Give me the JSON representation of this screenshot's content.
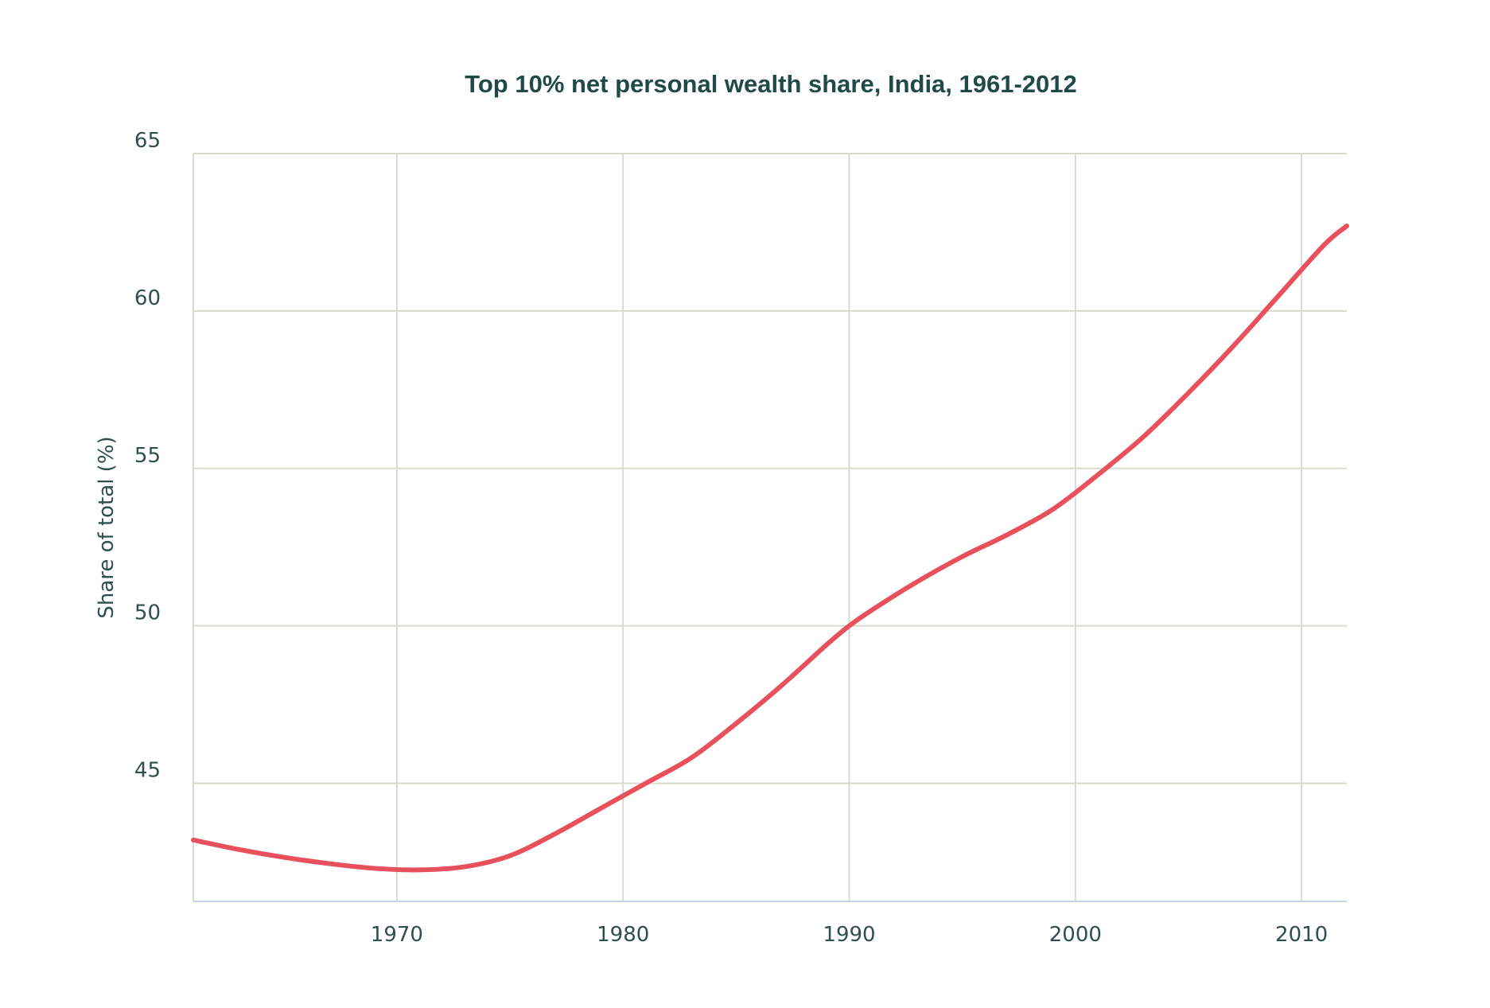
{
  "colors": {
    "series": "#e8505b",
    "title": "#1f4a45",
    "text": "#2f4f4f",
    "grid": "#d9d9d0",
    "axis": "#c8d2e2"
  },
  "chart_data": {
    "type": "line",
    "title": "Top 10% net personal wealth share, India, 1961-2012",
    "xlabel": "",
    "ylabel": "Share of total (%)",
    "xlim": [
      1961,
      2012
    ],
    "ylim": [
      41.25,
      65
    ],
    "x_ticks": [
      1970,
      1980,
      1990,
      2000,
      2010
    ],
    "x_tick_labels": [
      "1970",
      "1980",
      "1990",
      "2000",
      "2010"
    ],
    "y_ticks": [
      45,
      50,
      55,
      60,
      65
    ],
    "y_tick_labels": [
      "45",
      "50",
      "55",
      "60",
      "65"
    ],
    "grid": true,
    "legend": "none",
    "series": [
      {
        "x": [
          1961,
          1963,
          1965,
          1967,
          1969,
          1971,
          1973,
          1975,
          1977,
          1979,
          1981,
          1983,
          1985,
          1987,
          1989,
          1990,
          1991,
          1993,
          1995,
          1997,
          1999,
          2001,
          2003,
          2005,
          2007,
          2009,
          2011,
          2012
        ],
        "values": [
          43.2,
          42.9,
          42.65,
          42.45,
          42.3,
          42.25,
          42.35,
          42.7,
          43.4,
          44.2,
          45.0,
          45.8,
          46.9,
          48.1,
          49.4,
          50.0,
          50.5,
          51.4,
          52.2,
          52.9,
          53.7,
          54.8,
          56.0,
          57.4,
          58.9,
          60.5,
          62.1,
          62.7
        ]
      }
    ]
  }
}
